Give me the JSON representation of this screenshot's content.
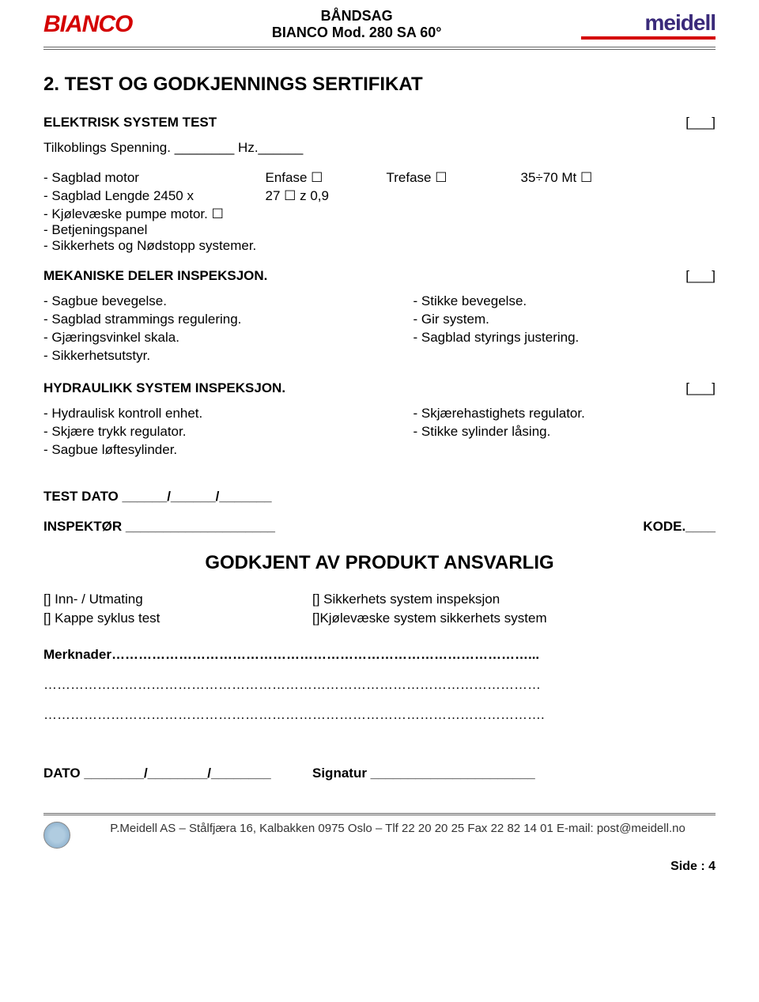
{
  "header": {
    "title_line1": "BÅNDSAG",
    "title_line2": "BIANCO Mod. 280 SA 60°",
    "logo_left": "BIANCO",
    "logo_right": "meidell"
  },
  "main": {
    "section_title": "2. TEST OG GODKJENNINGS SERTIFIKAT",
    "elektrisk_label": "ELEKTRISK SYSTEM TEST",
    "bracket": "[___]",
    "tilkobling": "Tilkoblings Spenning. ________  Hz.______",
    "motor": {
      "c1": "- Sagblad motor",
      "c2": "Enfase ☐",
      "c3": "Trefase ☐",
      "c4": "35÷70 Mt ☐"
    },
    "lengde": {
      "c1": "- Sagblad Lengde 2450 x",
      "c2": "27 ☐  z 0,9"
    },
    "pump": "- Kjølevæske pumpe motor.                          ☐",
    "betjening": "- Betjeningspanel",
    "sikkerhets": "- Sikkerhets og Nødstopp systemer.",
    "mekaniske_label": "MEKANISKE DELER INSPEKSJON.",
    "mek": {
      "l1": "- Sagbue bevegelse.",
      "r1": "- Stikke bevegelse.",
      "l2": "- Sagblad strammings regulering.",
      "r2": "- Gir system.",
      "l3": "- Gjæringsvinkel skala.",
      "r3": "- Sagblad styrings justering.",
      "l4": "- Sikkerhetsutstyr."
    },
    "hydraulikk_label": "HYDRAULIKK SYSTEM INSPEKSJON.",
    "hyd": {
      "l1": "- Hydraulisk kontroll enhet.",
      "r1": "- Skjærehastighets regulator.",
      "l2": "- Skjære trykk regulator.",
      "r2": "- Stikke sylinder låsing.",
      "l3": "- Sagbue løftesylinder."
    },
    "test_dato": "TEST DATO ______/______/_______",
    "inspektor": "INSPEKTØR ____________________",
    "kode": "KODE.____",
    "approved_title": "GODKJENT AV PRODUKT ANSVARLIG",
    "checks": {
      "l1": "[] Inn- / Utmating",
      "r1": "[] Sikkerhets system inspeksjon",
      "l2": "[] Kappe syklus test",
      "r2": "[]Kjølevæske system sikkerhets system"
    },
    "merknader": "Merknader…………………………………………………………………………………...",
    "dato": "DATO ________/________/________",
    "signatur": "Signatur ______________________"
  },
  "footer": {
    "text": "P.Meidell AS – Stålfjæra 16, Kalbakken 0975 Oslo – Tlf 22 20 20 25  Fax 22 82 14 01  E-mail: post@meidell.no",
    "page": "Side : 4"
  }
}
